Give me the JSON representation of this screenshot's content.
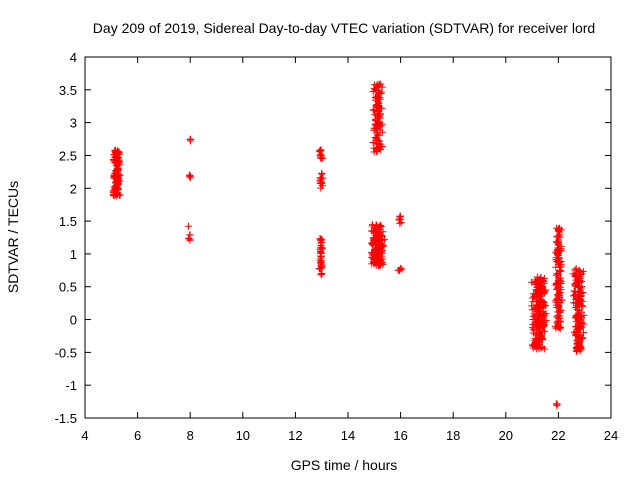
{
  "chart_data": {
    "type": "scatter",
    "title": "Day 209 of 2019, Sidereal Day-to-day VTEC variation (SDTVAR) for receiver lord",
    "xlabel": "GPS time / hours",
    "ylabel": "SDTVAR / TECUs",
    "xlim": [
      4,
      24
    ],
    "ylim": [
      -1.5,
      4
    ],
    "x_ticks": [
      "4",
      "6",
      "8",
      "10",
      "12",
      "14",
      "16",
      "18",
      "20",
      "22",
      "24"
    ],
    "y_ticks": [
      "-1.5",
      "-1",
      "-0.5",
      "0",
      "0.5",
      "1",
      "1.5",
      "2",
      "2.5",
      "3",
      "3.5",
      "4"
    ],
    "grid": false,
    "marker": "+",
    "series": [
      {
        "name": "SDTVAR",
        "color": "#ff0000",
        "clusters": [
          {
            "x": [
              5.05,
              5.35
            ],
            "y": [
              1.88,
              2.58
            ],
            "n": 140
          },
          {
            "x": [
              7.92,
              8.05
            ],
            "y": [
              1.2,
              1.6
            ],
            "n": 6
          },
          {
            "x": [
              7.95,
              8.05
            ],
            "y": [
              2.14,
              2.22
            ],
            "n": 4
          },
          {
            "x": [
              7.96,
              8.04
            ],
            "y": [
              2.7,
              2.75
            ],
            "n": 3
          },
          {
            "x": [
              12.9,
              13.05
            ],
            "y": [
              0.68,
              1.25
            ],
            "n": 40
          },
          {
            "x": [
              12.9,
              13.05
            ],
            "y": [
              2.0,
              2.25
            ],
            "n": 14
          },
          {
            "x": [
              12.9,
              13.05
            ],
            "y": [
              2.45,
              2.6
            ],
            "n": 14
          },
          {
            "x": [
              14.85,
              15.4
            ],
            "y": [
              0.82,
              1.45
            ],
            "n": 170
          },
          {
            "x": [
              14.9,
              15.35
            ],
            "y": [
              2.55,
              3.62
            ],
            "n": 110
          },
          {
            "x": [
              15.9,
              16.05
            ],
            "y": [
              1.45,
              1.58
            ],
            "n": 8
          },
          {
            "x": [
              15.9,
              16.05
            ],
            "y": [
              0.73,
              0.78
            ],
            "n": 5
          },
          {
            "x": [
              20.95,
              21.55
            ],
            "y": [
              -0.45,
              0.65
            ],
            "n": 230
          },
          {
            "x": [
              21.85,
              22.15
            ],
            "y": [
              -0.15,
              1.4
            ],
            "n": 130
          },
          {
            "x": [
              21.9,
              22.0
            ],
            "y": [
              -1.32,
              -1.22
            ],
            "n": 3
          },
          {
            "x": [
              22.55,
              23.0
            ],
            "y": [
              -0.5,
              0.78
            ],
            "n": 170
          }
        ]
      }
    ]
  }
}
